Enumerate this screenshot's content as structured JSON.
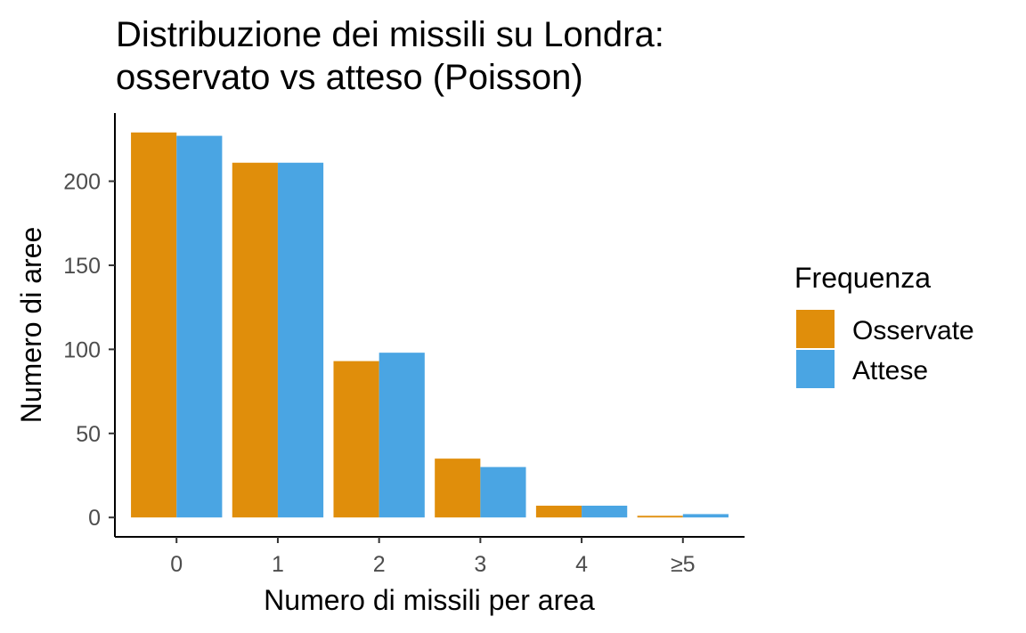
{
  "chart_data": {
    "type": "bar",
    "title_lines": [
      "Distribuzione dei missili su Londra:",
      "osservato vs atteso (Poisson)"
    ],
    "xlabel": "Numero di missili per area",
    "ylabel": "Numero di aree",
    "categories": [
      "0",
      "1",
      "2",
      "3",
      "4",
      "≥5"
    ],
    "series": [
      {
        "name": "Osservate",
        "color": "#E08E0B",
        "values": [
          229,
          211,
          93,
          35,
          7,
          1
        ]
      },
      {
        "name": "Attese",
        "color": "#4AA5E3",
        "values": [
          227,
          211,
          98,
          30,
          7,
          2
        ]
      }
    ],
    "yticks": [
      0,
      50,
      100,
      150,
      200
    ],
    "ylim": [
      -11,
      240
    ],
    "grid": false,
    "legend": {
      "title": "Frequenza",
      "position": "right"
    }
  }
}
